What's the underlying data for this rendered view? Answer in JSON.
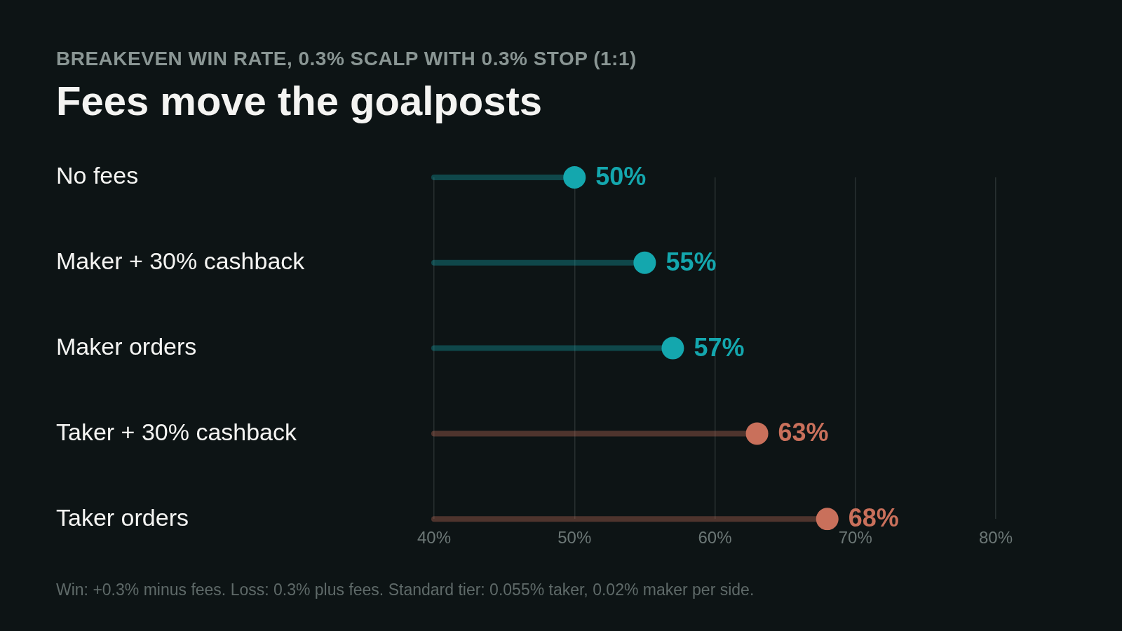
{
  "chart_data": {
    "type": "lollipop",
    "orientation": "horizontal",
    "subtitle": "BREAKEVEN WIN RATE, 0.3% SCALP WITH 0.3% STOP (1:1)",
    "title": "Fees move the goalposts",
    "categories": [
      "No fees",
      "Maker + 30% cashback",
      "Maker orders",
      "Taker + 30% cashback",
      "Taker orders"
    ],
    "values": [
      50,
      55,
      57,
      63,
      68
    ],
    "colors": [
      "#14a7ae",
      "#14a7ae",
      "#14a7ae",
      "#c9705b",
      "#c9705b"
    ],
    "value_labels": [
      "50%",
      "55%",
      "57%",
      "63%",
      "68%"
    ],
    "xlim": [
      40,
      80
    ],
    "xticks": [
      {
        "value": 40,
        "label": "40%"
      },
      {
        "value": 50,
        "label": "50%"
      },
      {
        "value": 60,
        "label": "60%"
      },
      {
        "value": 70,
        "label": "70%"
      },
      {
        "value": 80,
        "label": "80%"
      }
    ],
    "grid": "x",
    "marker": "circle",
    "legend": false,
    "annotations": [
      "Win: +0.3% minus fees. Loss: 0.3% plus fees. Standard tier: 0.055% taker, 0.02% maker per side."
    ]
  }
}
